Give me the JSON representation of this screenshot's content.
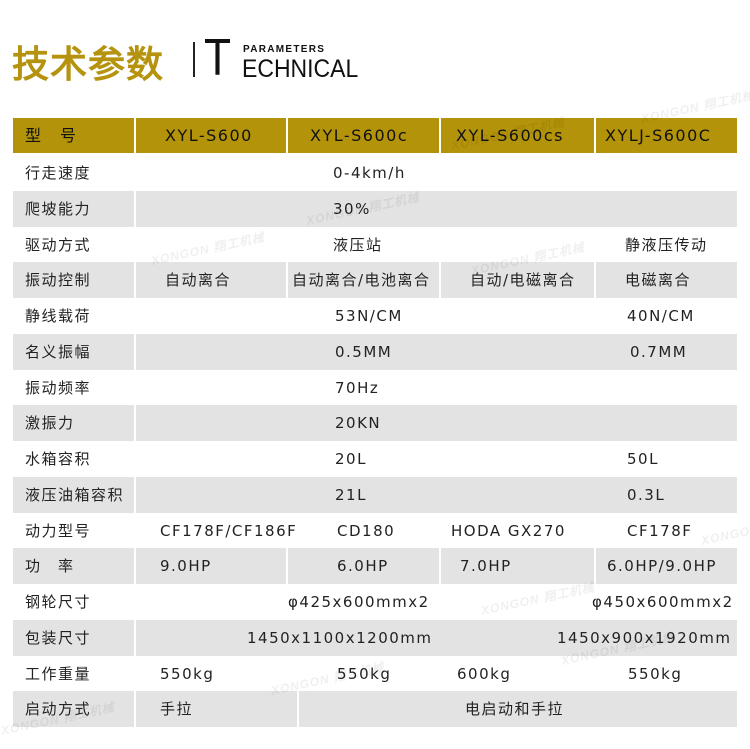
{
  "header": {
    "title_cn": "技术参数",
    "title_t": "T",
    "title_params": "PARAMETERS",
    "title_rest": "ECHNICAL"
  },
  "colors": {
    "gold": "#b3930a",
    "row_gray": "#e3e3e3"
  },
  "watermark": "XONGON 翔工机械",
  "table": {
    "header": {
      "label": "型　号",
      "models": [
        "XYL-S600",
        "XYL-S600c",
        "XYL-S600cs",
        "XYLJ-S600C"
      ]
    },
    "rows": [
      {
        "label": "行走速度",
        "values": [
          "0-4km/h"
        ]
      },
      {
        "label": "爬坡能力",
        "values": [
          "30%"
        ]
      },
      {
        "label": "驱动方式",
        "values": [
          "液压站",
          "静液压传动"
        ]
      },
      {
        "label": "振动控制",
        "values": [
          "自动离合",
          "自动离合/电池离合",
          "自动/电磁离合",
          "电磁离合"
        ]
      },
      {
        "label": "静线载荷",
        "values": [
          "53N/CM",
          "40N/CM"
        ]
      },
      {
        "label": "名义振幅",
        "values": [
          "0.5MM",
          "0.7MM"
        ]
      },
      {
        "label": "振动频率",
        "values": [
          "70Hz"
        ]
      },
      {
        "label": "激振力",
        "values": [
          "20KN"
        ]
      },
      {
        "label": "水箱容积",
        "values": [
          "20L",
          "50L"
        ]
      },
      {
        "label": "液压油箱容积",
        "values": [
          "21L",
          "0.3L"
        ]
      },
      {
        "label": "动力型号",
        "values": [
          "CF178F/CF186F",
          "CD180",
          "HODA GX270",
          "CF178F"
        ]
      },
      {
        "label": "功　率",
        "values": [
          "9.0HP",
          "6.0HP",
          "7.0HP",
          "6.0HP/9.0HP"
        ]
      },
      {
        "label": "钢轮尺寸",
        "values": [
          "φ425x600mmx2",
          "φ450x600mmx2"
        ]
      },
      {
        "label": "包装尺寸",
        "values": [
          "1450x1100x1200mm",
          "1450x900x1920mm"
        ]
      },
      {
        "label": "工作重量",
        "values": [
          "550kg",
          "550kg",
          "600kg",
          "550kg"
        ]
      },
      {
        "label": "启动方式",
        "values": [
          "手拉",
          "电启动和手拉"
        ]
      }
    ]
  }
}
